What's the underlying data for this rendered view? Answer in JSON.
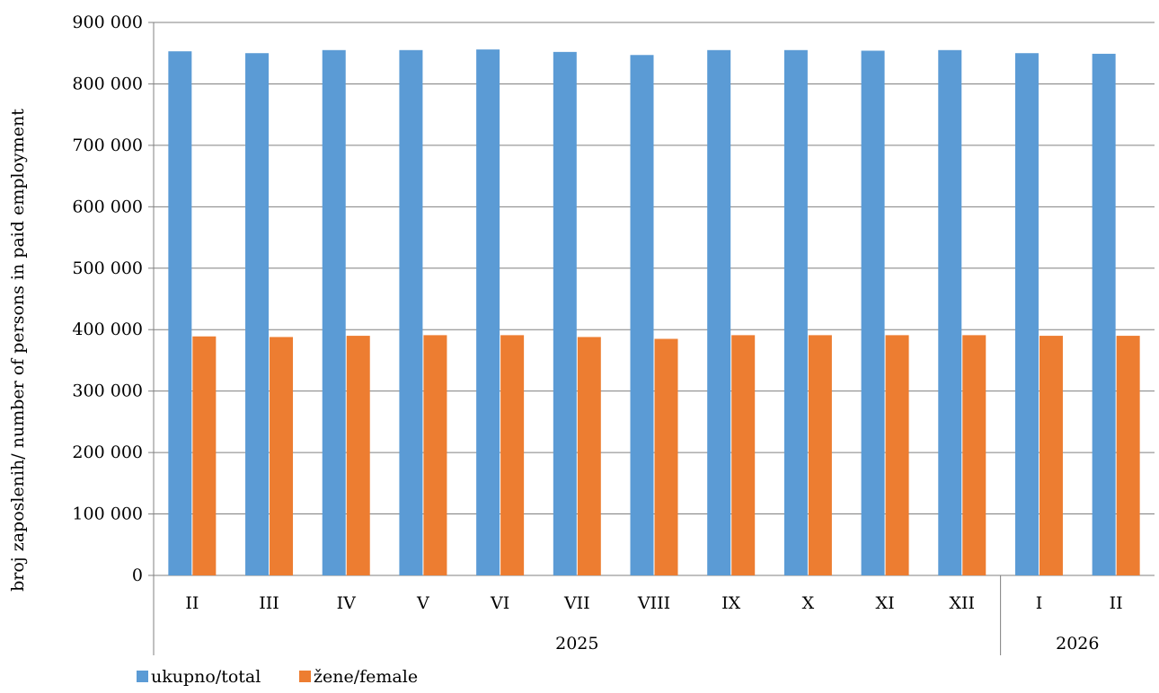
{
  "chart_data": {
    "type": "bar",
    "categories": [
      "II",
      "III",
      "IV",
      "V",
      "VI",
      "VII",
      "VIII",
      "IX",
      "X",
      "XI",
      "XII",
      "I",
      "II"
    ],
    "groups": [
      {
        "label": "2025",
        "count": 11
      },
      {
        "label": "2026",
        "count": 2
      }
    ],
    "series": [
      {
        "name": "ukupno/total",
        "color": "#5B9BD5",
        "values": [
          853000,
          850000,
          855000,
          855000,
          856000,
          852000,
          847000,
          855000,
          855000,
          854000,
          855000,
          850000,
          849000
        ]
      },
      {
        "name": "žene/female",
        "color": "#ED7D31",
        "values": [
          389000,
          388000,
          390000,
          391000,
          391000,
          388000,
          385000,
          391000,
          391000,
          391000,
          391000,
          390000,
          390000
        ]
      }
    ],
    "ylabel": "broj zaposlenih/ number of  persons  in paid employment",
    "xlabel": "",
    "ylim": [
      0,
      900000
    ],
    "yticks": [
      0,
      100000,
      200000,
      300000,
      400000,
      500000,
      600000,
      700000,
      800000,
      900000
    ],
    "ytick_labels": [
      "0",
      "100 000",
      "200 000",
      "300 000",
      "400 000",
      "500 000",
      "600 000",
      "700 000",
      "800 000",
      "900 000"
    ],
    "grid": true,
    "legend_position": "bottom-left"
  }
}
